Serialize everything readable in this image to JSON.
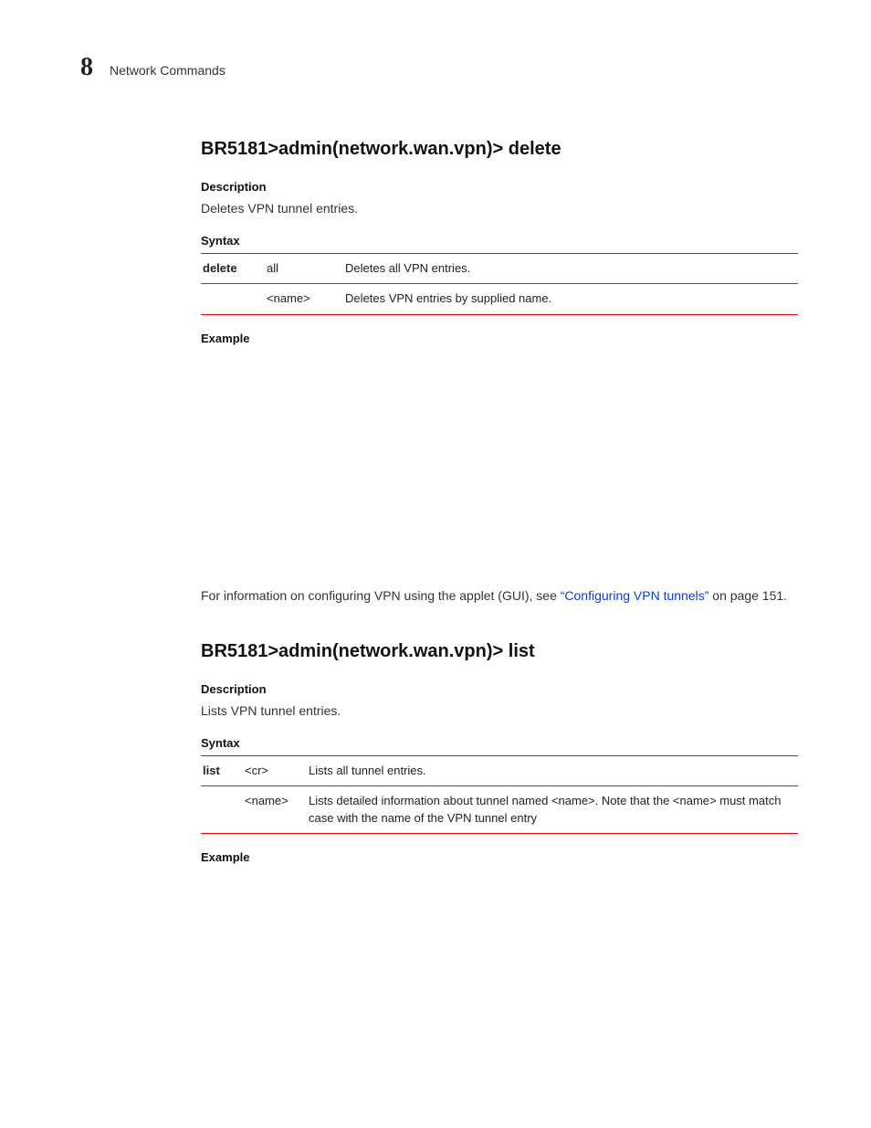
{
  "header": {
    "chapter_number": "8",
    "chapter_title": "Network Commands"
  },
  "colors": {
    "rule_accent": "#e30613",
    "rule_mid": "#555555",
    "link": "#0b3ec9",
    "text": "#333333",
    "bg": "#ffffff"
  },
  "typography": {
    "body_font": "Arial",
    "chapter_num_font": "Georgia",
    "heading_size_pt": 15,
    "subhead_size_pt": 10,
    "body_size_pt": 10.5,
    "table_size_pt": 10
  },
  "sections": [
    {
      "heading": "BR5181>admin(network.wan.vpn)> delete",
      "description_label": "Description",
      "description_text": "Deletes VPN tunnel entries.",
      "syntax_label": "Syntax",
      "syntax_table": {
        "col_widths": [
          "70px",
          "86px",
          "auto"
        ],
        "rows": [
          {
            "cmd": "delete",
            "arg": "all",
            "desc": "Deletes all VPN entries."
          },
          {
            "cmd": "",
            "arg": "<name>",
            "desc": "Deletes VPN entries by supplied name."
          }
        ]
      },
      "example_label": "Example",
      "xref_para_prefix": "For information on configuring VPN using the applet (GUI), see ",
      "xref_link_text": "“Configuring VPN tunnels”",
      "xref_para_suffix": " on page 151."
    },
    {
      "heading": "BR5181>admin(network.wan.vpn)> list",
      "description_label": "Description",
      "description_text": "Lists VPN tunnel entries.",
      "syntax_label": "Syntax",
      "syntax_table": {
        "col_widths": [
          "46px",
          "70px",
          "auto"
        ],
        "rows": [
          {
            "cmd": "list",
            "arg": "<cr>",
            "desc": "Lists all tunnel entries."
          },
          {
            "cmd": "",
            "arg": "<name>",
            "desc": "Lists detailed information about tunnel named <name>. Note that the <name> must match case with the name of the VPN tunnel entry"
          }
        ]
      },
      "example_label": "Example"
    }
  ]
}
